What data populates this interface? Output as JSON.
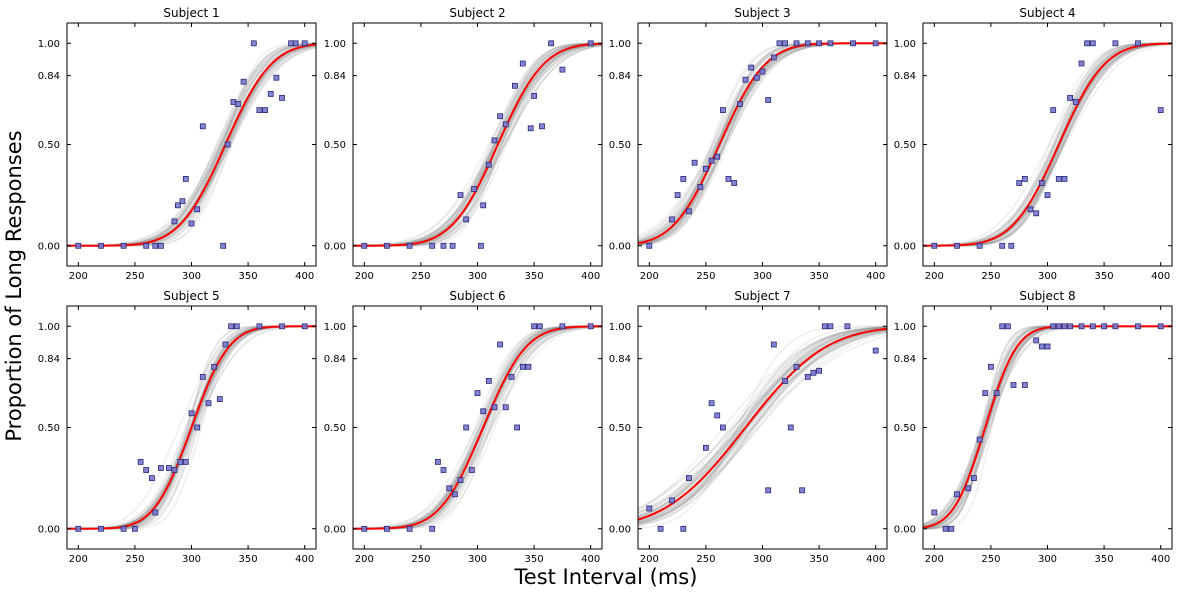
{
  "figure": {
    "ylabel": "Proportion of Long Responses",
    "xlabel": "Test Interval (ms)"
  },
  "colors": {
    "fit_line": "#ff0000",
    "sample_lines": "#808080",
    "data_marker_fill": "#7777cc",
    "data_marker_edge": "#2a2a7a",
    "background": "#ffffff"
  },
  "chart_data": [
    {
      "type": "scatter",
      "title": "Subject 1",
      "xlim": [
        190,
        410
      ],
      "ylim": [
        -0.1,
        1.1
      ],
      "xticks": [
        200,
        250,
        300,
        350,
        400
      ],
      "yticks": [
        0.0,
        0.5,
        0.84,
        1.0
      ],
      "ytick_labels": [
        "0.00",
        "0.50",
        "0.84",
        "1.00"
      ],
      "fit": {
        "mu": 330,
        "sigma": 32
      },
      "points": [
        [
          200,
          0
        ],
        [
          220,
          0
        ],
        [
          240,
          0
        ],
        [
          260,
          0
        ],
        [
          268,
          0
        ],
        [
          273,
          0
        ],
        [
          285,
          0.12
        ],
        [
          288,
          0.2
        ],
        [
          292,
          0.22
        ],
        [
          295,
          0.33
        ],
        [
          300,
          0.11
        ],
        [
          305,
          0.18
        ],
        [
          310,
          0.59
        ],
        [
          328,
          0
        ],
        [
          332,
          0.5
        ],
        [
          337,
          0.71
        ],
        [
          341,
          0.7
        ],
        [
          346,
          0.81
        ],
        [
          355,
          1.0
        ],
        [
          360,
          0.67
        ],
        [
          365,
          0.67
        ],
        [
          370,
          0.75
        ],
        [
          375,
          0.83
        ],
        [
          380,
          0.73
        ],
        [
          388,
          1.0
        ],
        [
          392,
          1.0
        ],
        [
          400,
          1.0
        ]
      ]
    },
    {
      "type": "scatter",
      "title": "Subject 2",
      "xlim": [
        190,
        410
      ],
      "ylim": [
        -0.1,
        1.1
      ],
      "xticks": [
        200,
        250,
        300,
        350,
        400
      ],
      "yticks": [
        0.0,
        0.5,
        0.84,
        1.0
      ],
      "ytick_labels": [
        "0.00",
        "0.50",
        "0.84",
        "1.00"
      ],
      "fit": {
        "mu": 318,
        "sigma": 32
      },
      "points": [
        [
          200,
          0
        ],
        [
          220,
          0
        ],
        [
          240,
          0
        ],
        [
          260,
          0
        ],
        [
          270,
          0
        ],
        [
          278,
          0
        ],
        [
          285,
          0.25
        ],
        [
          290,
          0.13
        ],
        [
          297,
          0.28
        ],
        [
          303,
          0
        ],
        [
          305,
          0.2
        ],
        [
          310,
          0.4
        ],
        [
          315,
          0.52
        ],
        [
          320,
          0.64
        ],
        [
          325,
          0.6
        ],
        [
          333,
          0.79
        ],
        [
          340,
          0.9
        ],
        [
          347,
          0.58
        ],
        [
          350,
          0.74
        ],
        [
          357,
          0.59
        ],
        [
          365,
          1.0
        ],
        [
          375,
          0.87
        ],
        [
          400,
          1.0
        ]
      ]
    },
    {
      "type": "scatter",
      "title": "Subject 3",
      "xlim": [
        190,
        410
      ],
      "ylim": [
        -0.1,
        1.1
      ],
      "xticks": [
        200,
        250,
        300,
        350,
        400
      ],
      "yticks": [
        0.0,
        0.5,
        0.84,
        1.0
      ],
      "ytick_labels": [
        "0.00",
        "0.50",
        "0.84",
        "1.00"
      ],
      "fit": {
        "mu": 262,
        "sigma": 32
      },
      "points": [
        [
          200,
          0
        ],
        [
          220,
          0.13
        ],
        [
          225,
          0.25
        ],
        [
          230,
          0.33
        ],
        [
          235,
          0.17
        ],
        [
          240,
          0.41
        ],
        [
          245,
          0.29
        ],
        [
          250,
          0.38
        ],
        [
          255,
          0.42
        ],
        [
          260,
          0.44
        ],
        [
          265,
          0.67
        ],
        [
          270,
          0.33
        ],
        [
          275,
          0.31
        ],
        [
          280,
          0.7
        ],
        [
          285,
          0.82
        ],
        [
          290,
          0.88
        ],
        [
          295,
          0.83
        ],
        [
          300,
          0.86
        ],
        [
          305,
          0.72
        ],
        [
          310,
          0.93
        ],
        [
          315,
          1.0
        ],
        [
          320,
          1.0
        ],
        [
          330,
          1.0
        ],
        [
          340,
          1.0
        ],
        [
          350,
          1.0
        ],
        [
          360,
          1.0
        ],
        [
          380,
          1.0
        ],
        [
          400,
          1.0
        ]
      ]
    },
    {
      "type": "scatter",
      "title": "Subject 4",
      "xlim": [
        190,
        410
      ],
      "ylim": [
        -0.1,
        1.1
      ],
      "xticks": [
        200,
        250,
        300,
        350,
        400
      ],
      "yticks": [
        0.0,
        0.5,
        0.84,
        1.0
      ],
      "ytick_labels": [
        "0.00",
        "0.50",
        "0.84",
        "1.00"
      ],
      "fit": {
        "mu": 310,
        "sigma": 32
      },
      "points": [
        [
          200,
          0
        ],
        [
          220,
          0
        ],
        [
          240,
          0
        ],
        [
          260,
          0
        ],
        [
          268,
          0
        ],
        [
          275,
          0.31
        ],
        [
          280,
          0.33
        ],
        [
          285,
          0.18
        ],
        [
          290,
          0.16
        ],
        [
          295,
          0.31
        ],
        [
          300,
          0.25
        ],
        [
          305,
          0.67
        ],
        [
          310,
          0.33
        ],
        [
          315,
          0.33
        ],
        [
          320,
          0.73
        ],
        [
          325,
          0.71
        ],
        [
          330,
          0.9
        ],
        [
          335,
          1.0
        ],
        [
          340,
          1.0
        ],
        [
          360,
          1.0
        ],
        [
          380,
          1.0
        ],
        [
          400,
          0.67
        ]
      ]
    },
    {
      "type": "scatter",
      "title": "Subject 5",
      "xlim": [
        190,
        410
      ],
      "ylim": [
        -0.1,
        1.1
      ],
      "xticks": [
        200,
        250,
        300,
        350,
        400
      ],
      "yticks": [
        0.0,
        0.5,
        0.84,
        1.0
      ],
      "ytick_labels": [
        "0.00",
        "0.50",
        "0.84",
        "1.00"
      ],
      "fit": {
        "mu": 300,
        "sigma": 26
      },
      "points": [
        [
          200,
          0
        ],
        [
          220,
          0
        ],
        [
          240,
          0
        ],
        [
          250,
          0
        ],
        [
          255,
          0.33
        ],
        [
          260,
          0.29
        ],
        [
          265,
          0.25
        ],
        [
          268,
          0.08
        ],
        [
          273,
          0.3
        ],
        [
          280,
          0.3
        ],
        [
          285,
          0.29
        ],
        [
          290,
          0.33
        ],
        [
          295,
          0.33
        ],
        [
          300,
          0.57
        ],
        [
          305,
          0.5
        ],
        [
          310,
          0.75
        ],
        [
          315,
          0.62
        ],
        [
          320,
          0.8
        ],
        [
          325,
          0.64
        ],
        [
          330,
          0.91
        ],
        [
          335,
          1.0
        ],
        [
          340,
          1.0
        ],
        [
          360,
          1.0
        ],
        [
          380,
          1.0
        ],
        [
          400,
          1.0
        ]
      ]
    },
    {
      "type": "scatter",
      "title": "Subject 6",
      "xlim": [
        190,
        410
      ],
      "ylim": [
        -0.1,
        1.1
      ],
      "xticks": [
        200,
        250,
        300,
        350,
        400
      ],
      "yticks": [
        0.0,
        0.5,
        0.84,
        1.0
      ],
      "ytick_labels": [
        "0.00",
        "0.50",
        "0.84",
        "1.00"
      ],
      "fit": {
        "mu": 305,
        "sigma": 30
      },
      "points": [
        [
          200,
          0
        ],
        [
          220,
          0
        ],
        [
          240,
          0
        ],
        [
          260,
          0
        ],
        [
          265,
          0.33
        ],
        [
          270,
          0.29
        ],
        [
          275,
          0.2
        ],
        [
          280,
          0.17
        ],
        [
          285,
          0.24
        ],
        [
          290,
          0.5
        ],
        [
          295,
          0.29
        ],
        [
          300,
          0.67
        ],
        [
          305,
          0.58
        ],
        [
          310,
          0.73
        ],
        [
          315,
          0.6
        ],
        [
          320,
          0.91
        ],
        [
          325,
          0.6
        ],
        [
          330,
          0.75
        ],
        [
          335,
          0.5
        ],
        [
          340,
          0.8
        ],
        [
          345,
          0.8
        ],
        [
          350,
          1.0
        ],
        [
          355,
          1.0
        ],
        [
          375,
          1.0
        ],
        [
          400,
          1.0
        ]
      ]
    },
    {
      "type": "scatter",
      "title": "Subject 7",
      "xlim": [
        190,
        410
      ],
      "ylim": [
        -0.1,
        1.1
      ],
      "xticks": [
        200,
        250,
        300,
        350,
        400
      ],
      "yticks": [
        0.0,
        0.5,
        0.84,
        1.0
      ],
      "ytick_labels": [
        "0.00",
        "0.50",
        "0.84",
        "1.00"
      ],
      "fit": {
        "mu": 285,
        "sigma": 56
      },
      "points": [
        [
          200,
          0.1
        ],
        [
          210,
          0
        ],
        [
          220,
          0.14
        ],
        [
          230,
          0
        ],
        [
          235,
          0.25
        ],
        [
          250,
          0.4
        ],
        [
          255,
          0.62
        ],
        [
          260,
          0.56
        ],
        [
          265,
          0.5
        ],
        [
          305,
          0.19
        ],
        [
          310,
          0.91
        ],
        [
          320,
          0.73
        ],
        [
          325,
          0.5
        ],
        [
          330,
          0.8
        ],
        [
          335,
          0.19
        ],
        [
          340,
          0.75
        ],
        [
          345,
          0.77
        ],
        [
          350,
          0.78
        ],
        [
          355,
          1.0
        ],
        [
          360,
          1.0
        ],
        [
          375,
          1.0
        ],
        [
          400,
          0.88
        ]
      ]
    },
    {
      "type": "scatter",
      "title": "Subject 8",
      "xlim": [
        190,
        410
      ],
      "ylim": [
        -0.1,
        1.1
      ],
      "xticks": [
        200,
        250,
        300,
        350,
        400
      ],
      "yticks": [
        0.0,
        0.5,
        0.84,
        1.0
      ],
      "ytick_labels": [
        "0.00",
        "0.50",
        "0.84",
        "1.00"
      ],
      "fit": {
        "mu": 245,
        "sigma": 22
      },
      "points": [
        [
          200,
          0.08
        ],
        [
          210,
          0
        ],
        [
          215,
          0
        ],
        [
          220,
          0.17
        ],
        [
          230,
          0.2
        ],
        [
          235,
          0.25
        ],
        [
          240,
          0.44
        ],
        [
          245,
          0.67
        ],
        [
          250,
          0.8
        ],
        [
          255,
          0.67
        ],
        [
          260,
          1.0
        ],
        [
          265,
          1.0
        ],
        [
          270,
          0.71
        ],
        [
          280,
          0.71
        ],
        [
          290,
          0.93
        ],
        [
          295,
          0.9
        ],
        [
          300,
          0.9
        ],
        [
          305,
          1.0
        ],
        [
          310,
          1.0
        ],
        [
          315,
          1.0
        ],
        [
          320,
          1.0
        ],
        [
          330,
          1.0
        ],
        [
          340,
          1.0
        ],
        [
          350,
          1.0
        ],
        [
          360,
          1.0
        ],
        [
          380,
          1.0
        ],
        [
          400,
          1.0
        ]
      ]
    }
  ]
}
